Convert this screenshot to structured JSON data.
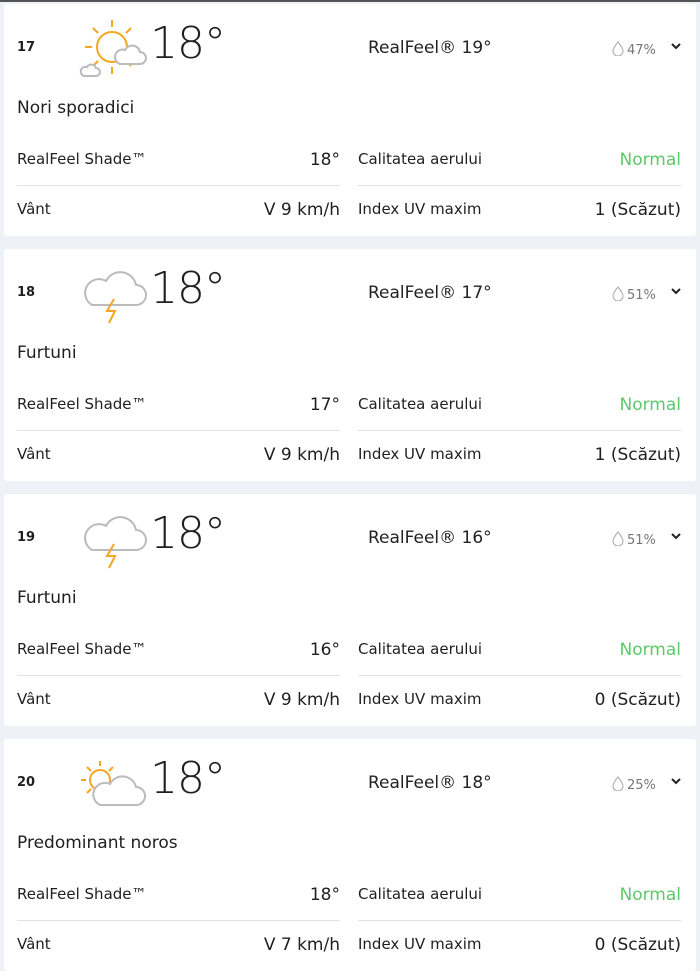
{
  "labels": {
    "realfeel_shade": "RealFeel Shade™",
    "wind": "Vânt",
    "air_quality": "Calitatea aerului",
    "uv_max": "Index UV maxim"
  },
  "colors": {
    "air_quality_normal": "#5cc96a",
    "sun": "#f5a623",
    "cloud": "#bdbdbd"
  },
  "hours": [
    {
      "hour": "17",
      "icon": "sun-with-clouds-icon",
      "temp": "18°",
      "realfeel": "RealFeel® 19°",
      "precip": "47%",
      "desc": "Nori sporadici",
      "realfeel_shade": "18°",
      "air_quality": "Normal",
      "wind": "V 9 km/h",
      "uv": "1 (Scăzut)"
    },
    {
      "hour": "18",
      "icon": "thunderstorm-icon",
      "temp": "18°",
      "realfeel": "RealFeel® 17°",
      "precip": "51%",
      "desc": "Furtuni",
      "realfeel_shade": "17°",
      "air_quality": "Normal",
      "wind": "V 9 km/h",
      "uv": "1 (Scăzut)"
    },
    {
      "hour": "19",
      "icon": "thunderstorm-icon",
      "temp": "18°",
      "realfeel": "RealFeel® 16°",
      "precip": "51%",
      "desc": "Furtuni",
      "realfeel_shade": "16°",
      "air_quality": "Normal",
      "wind": "V 9 km/h",
      "uv": "0 (Scăzut)"
    },
    {
      "hour": "20",
      "icon": "mostly-cloudy-icon",
      "temp": "18°",
      "realfeel": "RealFeel® 18°",
      "precip": "25%",
      "desc": "Predominant noros",
      "realfeel_shade": "18°",
      "air_quality": "Normal",
      "wind": "V 7 km/h",
      "uv": "0 (Scăzut)"
    }
  ]
}
